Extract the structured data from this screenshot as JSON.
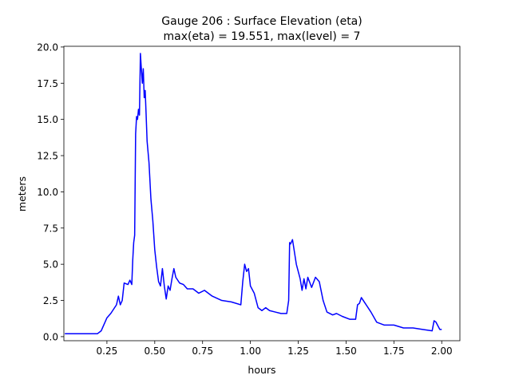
{
  "chart_data": {
    "type": "line",
    "title": "Gauge 206 : Surface Elevation (eta)",
    "subtitle": "max(eta) =  19.551,    max(level) = 7",
    "xlabel": "hours",
    "ylabel": "meters",
    "color": "#0000ff",
    "x": [
      0.03,
      0.2,
      0.22,
      0.24,
      0.25,
      0.27,
      0.29,
      0.3,
      0.31,
      0.32,
      0.33,
      0.34,
      0.36,
      0.37,
      0.38,
      0.385,
      0.39,
      0.395,
      0.4,
      0.405,
      0.41,
      0.415,
      0.42,
      0.425,
      0.43,
      0.435,
      0.44,
      0.445,
      0.45,
      0.455,
      0.46,
      0.47,
      0.48,
      0.49,
      0.5,
      0.51,
      0.52,
      0.53,
      0.54,
      0.55,
      0.56,
      0.57,
      0.58,
      0.59,
      0.6,
      0.61,
      0.63,
      0.65,
      0.67,
      0.7,
      0.73,
      0.76,
      0.8,
      0.85,
      0.9,
      0.95,
      0.96,
      0.97,
      0.98,
      0.99,
      1.0,
      1.02,
      1.04,
      1.06,
      1.08,
      1.1,
      1.13,
      1.16,
      1.19,
      1.2,
      1.205,
      1.21,
      1.22,
      1.24,
      1.26,
      1.27,
      1.28,
      1.29,
      1.3,
      1.32,
      1.34,
      1.36,
      1.38,
      1.4,
      1.43,
      1.45,
      1.48,
      1.52,
      1.55,
      1.56,
      1.57,
      1.58,
      1.6,
      1.63,
      1.66,
      1.7,
      1.75,
      1.8,
      1.85,
      1.9,
      1.95,
      1.96,
      1.97,
      1.99,
      2.0
    ],
    "values": [
      0.2,
      0.2,
      0.4,
      1.0,
      1.3,
      1.6,
      2.0,
      2.2,
      2.8,
      2.2,
      2.5,
      3.7,
      3.6,
      3.9,
      3.6,
      5.3,
      6.5,
      7.0,
      14.0,
      15.2,
      15.0,
      15.7,
      15.3,
      19.551,
      18.5,
      17.5,
      18.5,
      16.5,
      17.0,
      15.3,
      13.5,
      12.0,
      9.5,
      8.0,
      6.0,
      4.8,
      3.8,
      3.5,
      4.7,
      3.5,
      2.6,
      3.5,
      3.2,
      4.0,
      4.7,
      4.1,
      3.7,
      3.6,
      3.3,
      3.3,
      3.0,
      3.2,
      2.8,
      2.5,
      2.4,
      2.2,
      3.8,
      5.0,
      4.5,
      4.7,
      3.5,
      3.0,
      2.0,
      1.8,
      2.0,
      1.8,
      1.7,
      1.6,
      1.6,
      2.5,
      6.5,
      6.4,
      6.7,
      5.0,
      4.0,
      3.2,
      4.0,
      3.3,
      4.1,
      3.4,
      4.1,
      3.8,
      2.5,
      1.7,
      1.5,
      1.6,
      1.4,
      1.2,
      1.2,
      2.2,
      2.3,
      2.7,
      2.3,
      1.7,
      1.0,
      0.8,
      0.8,
      0.6,
      0.6,
      0.5,
      0.4,
      1.1,
      1.0,
      0.5,
      0.5
    ],
    "xlim": [
      0.025,
      2.095
    ],
    "ylim": [
      -0.28,
      20.05
    ],
    "xticks": [
      0.25,
      {
        "value": 0.5,
        "label": "0.50"
      },
      0.75,
      {
        "value": 1,
        "label": "1.00"
      },
      1.25,
      {
        "value": 1.5,
        "label": "1.50"
      },
      1.75,
      {
        "value": 2,
        "label": "2.00"
      }
    ],
    "yticks": [
      {
        "value": 0,
        "label": "0.0"
      },
      2.5,
      {
        "value": 5,
        "label": "5.0"
      },
      7.5,
      {
        "value": 10,
        "label": "10.0"
      },
      12.5,
      {
        "value": 15,
        "label": "15.0"
      },
      17.5,
      {
        "value": 20,
        "label": "20.0"
      }
    ]
  }
}
